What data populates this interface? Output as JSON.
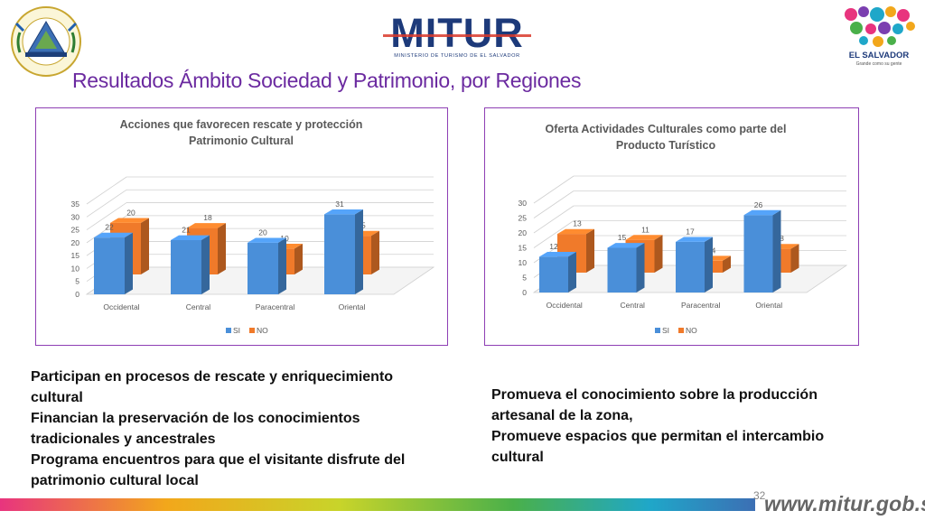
{
  "slide": {
    "title": "Resultados Ámbito Sociedad y Patrimonio, por Regiones",
    "page_number": "32",
    "url": "www.mitur.gob.sv"
  },
  "logos": {
    "left_seal_text": "REPUBLICA DE EL SALVADOR EN LA AMERICA CENTRAL",
    "mitur_name": "MITUR",
    "mitur_subtitle": "MINISTERIO DE TURISMO DE EL SALVADOR",
    "brand_name": "EL SALVADOR",
    "brand_tagline": "Grande como su gente"
  },
  "chart_data": [
    {
      "type": "bar",
      "title": "Acciones que favorecen rescate y protección Patrimonio Cultural",
      "categories": [
        "Occidental",
        "Central",
        "Paracentral",
        "Oriental"
      ],
      "series": [
        {
          "name": "SI",
          "values": [
            22,
            21,
            20,
            31
          ]
        },
        {
          "name": "NO",
          "values": [
            20,
            18,
            10,
            15
          ]
        }
      ],
      "yticks": [
        "0",
        "5",
        "10",
        "15",
        "20",
        "25",
        "30",
        "35"
      ],
      "ylim": [
        0,
        35
      ],
      "legend": "bottom",
      "grid": true,
      "colors": {
        "SI": "#4a8fd9",
        "NO": "#f07a2a"
      }
    },
    {
      "type": "bar",
      "title": "Oferta Actividades Culturales como parte del Producto Turístico",
      "categories": [
        "Occidental",
        "Central",
        "Paracentral",
        "Oriental"
      ],
      "series": [
        {
          "name": "SI",
          "values": [
            12,
            15,
            17,
            26
          ]
        },
        {
          "name": "NO",
          "values": [
            13,
            11,
            4,
            8
          ]
        }
      ],
      "yticks": [
        "0",
        "5",
        "10",
        "15",
        "20",
        "25",
        "30"
      ],
      "ylim": [
        0,
        30
      ],
      "legend": "bottom",
      "grid": true,
      "colors": {
        "SI": "#4a8fd9",
        "NO": "#f07a2a"
      }
    }
  ],
  "text_left": [
    "Participan en procesos de rescate y enriquecimiento cultural",
    "Financian la preservación de los conocimientos tradicionales y ancestrales",
    "Programa encuentros para que el visitante disfrute del patrimonio cultural local"
  ],
  "text_right": [
    "Promueva el conocimiento sobre la producción artesanal de la zona,",
    "Promueve espacios que permitan el intercambio cultural"
  ]
}
